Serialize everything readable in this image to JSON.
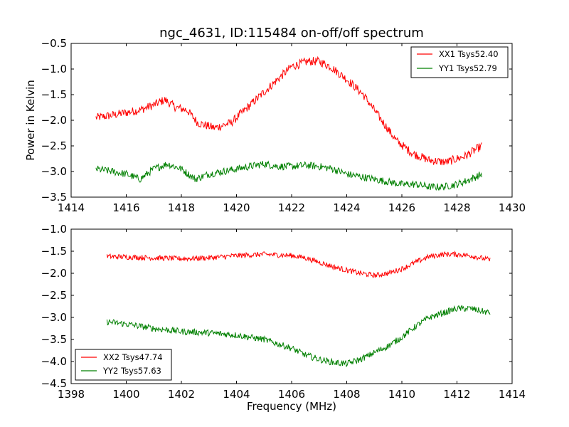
{
  "chart_data": [
    {
      "type": "line",
      "title": "ngc_4631, ID:115484 on-off/off spectrum",
      "xlabel": "",
      "ylabel": "Power in Kelvin",
      "xlim": [
        1414,
        1430
      ],
      "ylim": [
        -3.5,
        -0.5
      ],
      "xticks": [
        "1414",
        "1416",
        "1418",
        "1420",
        "1422",
        "1424",
        "1426",
        "1428",
        "1430"
      ],
      "yticks": [
        "−0.5",
        "−1.0",
        "−1.5",
        "−2.0",
        "−2.5",
        "−3.0",
        "−3.5"
      ],
      "legend_position": "top-right",
      "grid": false,
      "series": [
        {
          "name": "XX1 Tsys52.40",
          "color": "#ff0000",
          "noise": 0.14,
          "x": [
            1414.9,
            1415.5,
            1416.0,
            1416.5,
            1417.0,
            1417.4,
            1417.8,
            1418.2,
            1418.6,
            1419.2,
            1419.8,
            1420.4,
            1421.0,
            1421.5,
            1422.0,
            1422.6,
            1423.0,
            1423.4,
            1424.0,
            1424.6,
            1425.2,
            1425.8,
            1426.4,
            1427.0,
            1427.6,
            1428.3,
            1428.9
          ],
          "y": [
            -1.95,
            -1.9,
            -1.85,
            -1.8,
            -1.7,
            -1.6,
            -1.75,
            -1.8,
            -2.05,
            -2.15,
            -2.05,
            -1.75,
            -1.45,
            -1.2,
            -0.95,
            -0.85,
            -0.85,
            -0.95,
            -1.2,
            -1.5,
            -1.95,
            -2.4,
            -2.65,
            -2.78,
            -2.82,
            -2.7,
            -2.5
          ]
        },
        {
          "name": "YY1 Tsys52.79",
          "color": "#008000",
          "noise": 0.12,
          "x": [
            1414.9,
            1415.5,
            1416.0,
            1416.5,
            1417.0,
            1417.5,
            1418.0,
            1418.5,
            1419.0,
            1419.5,
            1420.0,
            1420.5,
            1421.0,
            1421.5,
            1422.0,
            1422.5,
            1423.0,
            1423.5,
            1424.0,
            1424.5,
            1425.0,
            1425.5,
            1426.0,
            1426.5,
            1427.0,
            1427.5,
            1428.0,
            1428.5,
            1428.9
          ],
          "y": [
            -2.95,
            -3.0,
            -3.05,
            -3.15,
            -2.95,
            -2.85,
            -2.95,
            -3.15,
            -3.05,
            -3.0,
            -2.95,
            -2.9,
            -2.85,
            -2.9,
            -2.9,
            -2.88,
            -2.9,
            -2.95,
            -3.05,
            -3.1,
            -3.15,
            -3.2,
            -3.25,
            -3.25,
            -3.3,
            -3.3,
            -3.25,
            -3.15,
            -3.05
          ]
        }
      ]
    },
    {
      "type": "line",
      "title": "",
      "xlabel": "Frequency (MHz)",
      "ylabel": "",
      "xlim": [
        1398,
        1414
      ],
      "ylim": [
        -4.5,
        -1.0
      ],
      "xticks": [
        "1398",
        "1400",
        "1402",
        "1404",
        "1406",
        "1408",
        "1410",
        "1412",
        "1414"
      ],
      "yticks": [
        "−1.0",
        "−1.5",
        "−2.0",
        "−2.5",
        "−3.0",
        "−3.5",
        "−4.0",
        "−4.5"
      ],
      "legend_position": "bottom-left",
      "grid": false,
      "series": [
        {
          "name": "XX2 Tsys47.74",
          "color": "#ff0000",
          "noise": 0.1,
          "x": [
            1399.3,
            1400.0,
            1401.0,
            1402.0,
            1403.0,
            1404.0,
            1405.0,
            1406.0,
            1406.5,
            1407.0,
            1407.5,
            1408.0,
            1408.5,
            1409.0,
            1409.5,
            1410.0,
            1410.5,
            1411.0,
            1411.5,
            1412.0,
            1412.5,
            1413.2
          ],
          "y": [
            -1.62,
            -1.63,
            -1.65,
            -1.67,
            -1.65,
            -1.6,
            -1.57,
            -1.6,
            -1.65,
            -1.75,
            -1.85,
            -1.93,
            -2.0,
            -2.05,
            -2.0,
            -1.9,
            -1.75,
            -1.62,
            -1.57,
            -1.57,
            -1.6,
            -1.7
          ]
        },
        {
          "name": "YY2 Tsys57.63",
          "color": "#008000",
          "noise": 0.12,
          "x": [
            1399.3,
            1400.0,
            1401.0,
            1402.0,
            1403.0,
            1404.0,
            1405.0,
            1405.5,
            1406.0,
            1406.5,
            1407.0,
            1407.5,
            1408.0,
            1408.5,
            1409.0,
            1409.5,
            1410.0,
            1410.5,
            1411.0,
            1411.5,
            1412.0,
            1412.5,
            1413.2
          ],
          "y": [
            -3.1,
            -3.15,
            -3.25,
            -3.32,
            -3.35,
            -3.4,
            -3.5,
            -3.6,
            -3.7,
            -3.85,
            -3.95,
            -4.02,
            -4.05,
            -3.95,
            -3.8,
            -3.65,
            -3.45,
            -3.2,
            -3.0,
            -2.9,
            -2.8,
            -2.8,
            -2.9
          ]
        }
      ]
    }
  ]
}
